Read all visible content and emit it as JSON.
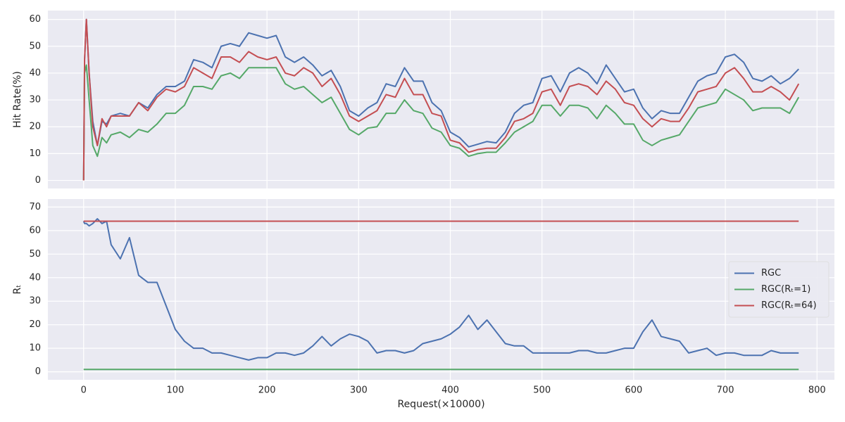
{
  "chart_data": [
    {
      "type": "line",
      "ylabel": "Hit Rate(%)",
      "x": [
        0,
        1,
        3,
        6,
        10,
        15,
        20,
        25,
        30,
        40,
        50,
        60,
        70,
        80,
        90,
        100,
        110,
        120,
        130,
        140,
        150,
        160,
        170,
        180,
        190,
        200,
        210,
        220,
        230,
        240,
        250,
        260,
        270,
        280,
        290,
        300,
        310,
        320,
        330,
        340,
        350,
        360,
        370,
        380,
        390,
        400,
        410,
        420,
        430,
        440,
        450,
        460,
        470,
        480,
        490,
        500,
        510,
        520,
        530,
        540,
        550,
        560,
        570,
        580,
        590,
        600,
        610,
        620,
        630,
        640,
        650,
        660,
        670,
        680,
        690,
        700,
        710,
        720,
        730,
        740,
        750,
        760,
        770,
        780
      ],
      "xlim": [
        -39,
        819
      ],
      "xticks": [
        0,
        100,
        200,
        300,
        400,
        500,
        600,
        700,
        800
      ],
      "ylim": [
        -3,
        63.3
      ],
      "yticks": [
        0,
        10,
        20,
        30,
        40,
        50,
        60
      ],
      "grid": true,
      "series": [
        {
          "name": "RGC",
          "color": "#4c72b0",
          "values": [
            0,
            45,
            60,
            40,
            22,
            13,
            22,
            21,
            24,
            25,
            24,
            29,
            27,
            32,
            35,
            35,
            37,
            45,
            44,
            42,
            50,
            51,
            50,
            55,
            54,
            53,
            54,
            46,
            44,
            46,
            43,
            39,
            41,
            35,
            26,
            24,
            27,
            29,
            36,
            35,
            42,
            37,
            37,
            29,
            26,
            18,
            16,
            12.5,
            13.5,
            14.5,
            14,
            18,
            25,
            28,
            29,
            38,
            39,
            33,
            40,
            42,
            40,
            36,
            43,
            38,
            33,
            34,
            27,
            23,
            26,
            25,
            25,
            31,
            37,
            39,
            40,
            46,
            47,
            44,
            38,
            37,
            39,
            36,
            38,
            41.5
          ]
        },
        {
          "name": "RGC(Rₜ=1)",
          "color": "#55a868",
          "values": [
            0,
            40,
            43,
            30,
            13,
            9,
            16,
            14,
            17,
            18,
            16,
            19,
            18,
            21,
            25,
            25,
            28,
            35,
            35,
            34,
            39,
            40,
            38,
            42,
            42,
            42,
            42,
            36,
            34,
            35,
            32,
            29,
            31,
            25,
            19,
            17,
            19.5,
            20,
            25,
            25,
            30,
            26,
            25,
            19.5,
            18,
            13,
            12,
            9,
            10,
            10.5,
            10.5,
            14,
            18,
            20,
            22,
            28,
            28,
            24,
            28,
            28,
            27,
            23,
            28,
            25,
            21,
            21,
            15,
            13,
            15,
            16,
            17,
            22,
            27,
            28,
            29,
            34,
            32,
            30,
            26,
            27,
            27,
            27,
            25,
            31
          ]
        },
        {
          "name": "RGC(Rₜ=64)",
          "color": "#c44e52",
          "values": [
            0,
            45,
            60,
            40,
            20,
            13,
            23,
            20,
            24,
            24,
            24,
            29,
            26,
            31,
            34,
            33,
            35,
            42,
            40,
            38,
            46,
            46,
            44,
            48,
            46,
            45,
            46,
            40,
            39,
            42,
            40,
            35,
            38,
            32,
            24,
            22,
            24,
            26,
            32,
            31,
            38,
            32,
            32,
            25,
            24,
            15,
            14,
            10.5,
            11.5,
            12,
            12,
            16,
            22,
            23,
            25,
            33,
            34,
            28,
            35,
            36,
            35,
            32,
            37,
            34,
            29,
            28,
            23,
            20,
            23,
            22,
            22,
            27,
            33,
            34,
            35,
            40,
            42,
            38,
            33,
            33,
            35,
            33,
            30,
            36
          ]
        }
      ]
    },
    {
      "type": "line",
      "ylabel": "Rₜ",
      "xlabel": "Request(×10000)",
      "x": [
        0,
        1,
        3,
        6,
        10,
        15,
        20,
        25,
        30,
        40,
        50,
        60,
        70,
        80,
        90,
        100,
        110,
        120,
        130,
        140,
        150,
        160,
        170,
        180,
        190,
        200,
        210,
        220,
        230,
        240,
        250,
        260,
        270,
        280,
        290,
        300,
        310,
        320,
        330,
        340,
        350,
        360,
        370,
        380,
        390,
        400,
        410,
        420,
        430,
        440,
        450,
        460,
        470,
        480,
        490,
        500,
        510,
        520,
        530,
        540,
        550,
        560,
        570,
        580,
        590,
        600,
        610,
        620,
        630,
        640,
        650,
        660,
        670,
        680,
        690,
        700,
        710,
        720,
        730,
        740,
        750,
        760,
        770,
        780
      ],
      "xlim": [
        -39,
        819
      ],
      "xticks": [
        0,
        100,
        200,
        300,
        400,
        500,
        600,
        700,
        800
      ],
      "ylim": [
        -3.4,
        73.4
      ],
      "yticks": [
        0,
        10,
        20,
        30,
        40,
        50,
        60,
        70
      ],
      "grid": true,
      "legend": "center right",
      "series": [
        {
          "name": "RGC",
          "color": "#4c72b0",
          "values": [
            64,
            63,
            63,
            62,
            63,
            65,
            63,
            64,
            54,
            48,
            57,
            41,
            38,
            38,
            28,
            18,
            13,
            10,
            10,
            8,
            8,
            7,
            6,
            5,
            6,
            6,
            8,
            8,
            7,
            8,
            11,
            15,
            11,
            14,
            16,
            15,
            13,
            8,
            9,
            9,
            8,
            9,
            12,
            13,
            14,
            16,
            19,
            24,
            18,
            22,
            17,
            12,
            11,
            11,
            8,
            8,
            8,
            8,
            8,
            9,
            9,
            8,
            8,
            9,
            10,
            10,
            17,
            22,
            15,
            14,
            13,
            8,
            9,
            10,
            7,
            8,
            8,
            7,
            7,
            7,
            9,
            8,
            8,
            8
          ]
        },
        {
          "name": "RGC(Rₜ=1)",
          "color": "#55a868",
          "values": [
            1,
            1,
            1,
            1,
            1,
            1,
            1,
            1,
            1,
            1,
            1,
            1,
            1,
            1,
            1,
            1,
            1,
            1,
            1,
            1,
            1,
            1,
            1,
            1,
            1,
            1,
            1,
            1,
            1,
            1,
            1,
            1,
            1,
            1,
            1,
            1,
            1,
            1,
            1,
            1,
            1,
            1,
            1,
            1,
            1,
            1,
            1,
            1,
            1,
            1,
            1,
            1,
            1,
            1,
            1,
            1,
            1,
            1,
            1,
            1,
            1,
            1,
            1,
            1,
            1,
            1,
            1,
            1,
            1,
            1,
            1,
            1,
            1,
            1,
            1,
            1,
            1,
            1,
            1,
            1,
            1,
            1,
            1,
            1
          ]
        },
        {
          "name": "RGC(Rₜ=64)",
          "color": "#c44e52",
          "values": [
            64,
            64,
            64,
            64,
            64,
            64,
            64,
            64,
            64,
            64,
            64,
            64,
            64,
            64,
            64,
            64,
            64,
            64,
            64,
            64,
            64,
            64,
            64,
            64,
            64,
            64,
            64,
            64,
            64,
            64,
            64,
            64,
            64,
            64,
            64,
            64,
            64,
            64,
            64,
            64,
            64,
            64,
            64,
            64,
            64,
            64,
            64,
            64,
            64,
            64,
            64,
            64,
            64,
            64,
            64,
            64,
            64,
            64,
            64,
            64,
            64,
            64,
            64,
            64,
            64,
            64,
            64,
            64,
            64,
            64,
            64,
            64,
            64,
            64,
            64,
            64,
            64,
            64,
            64,
            64,
            64,
            64,
            64,
            64
          ]
        }
      ]
    }
  ]
}
